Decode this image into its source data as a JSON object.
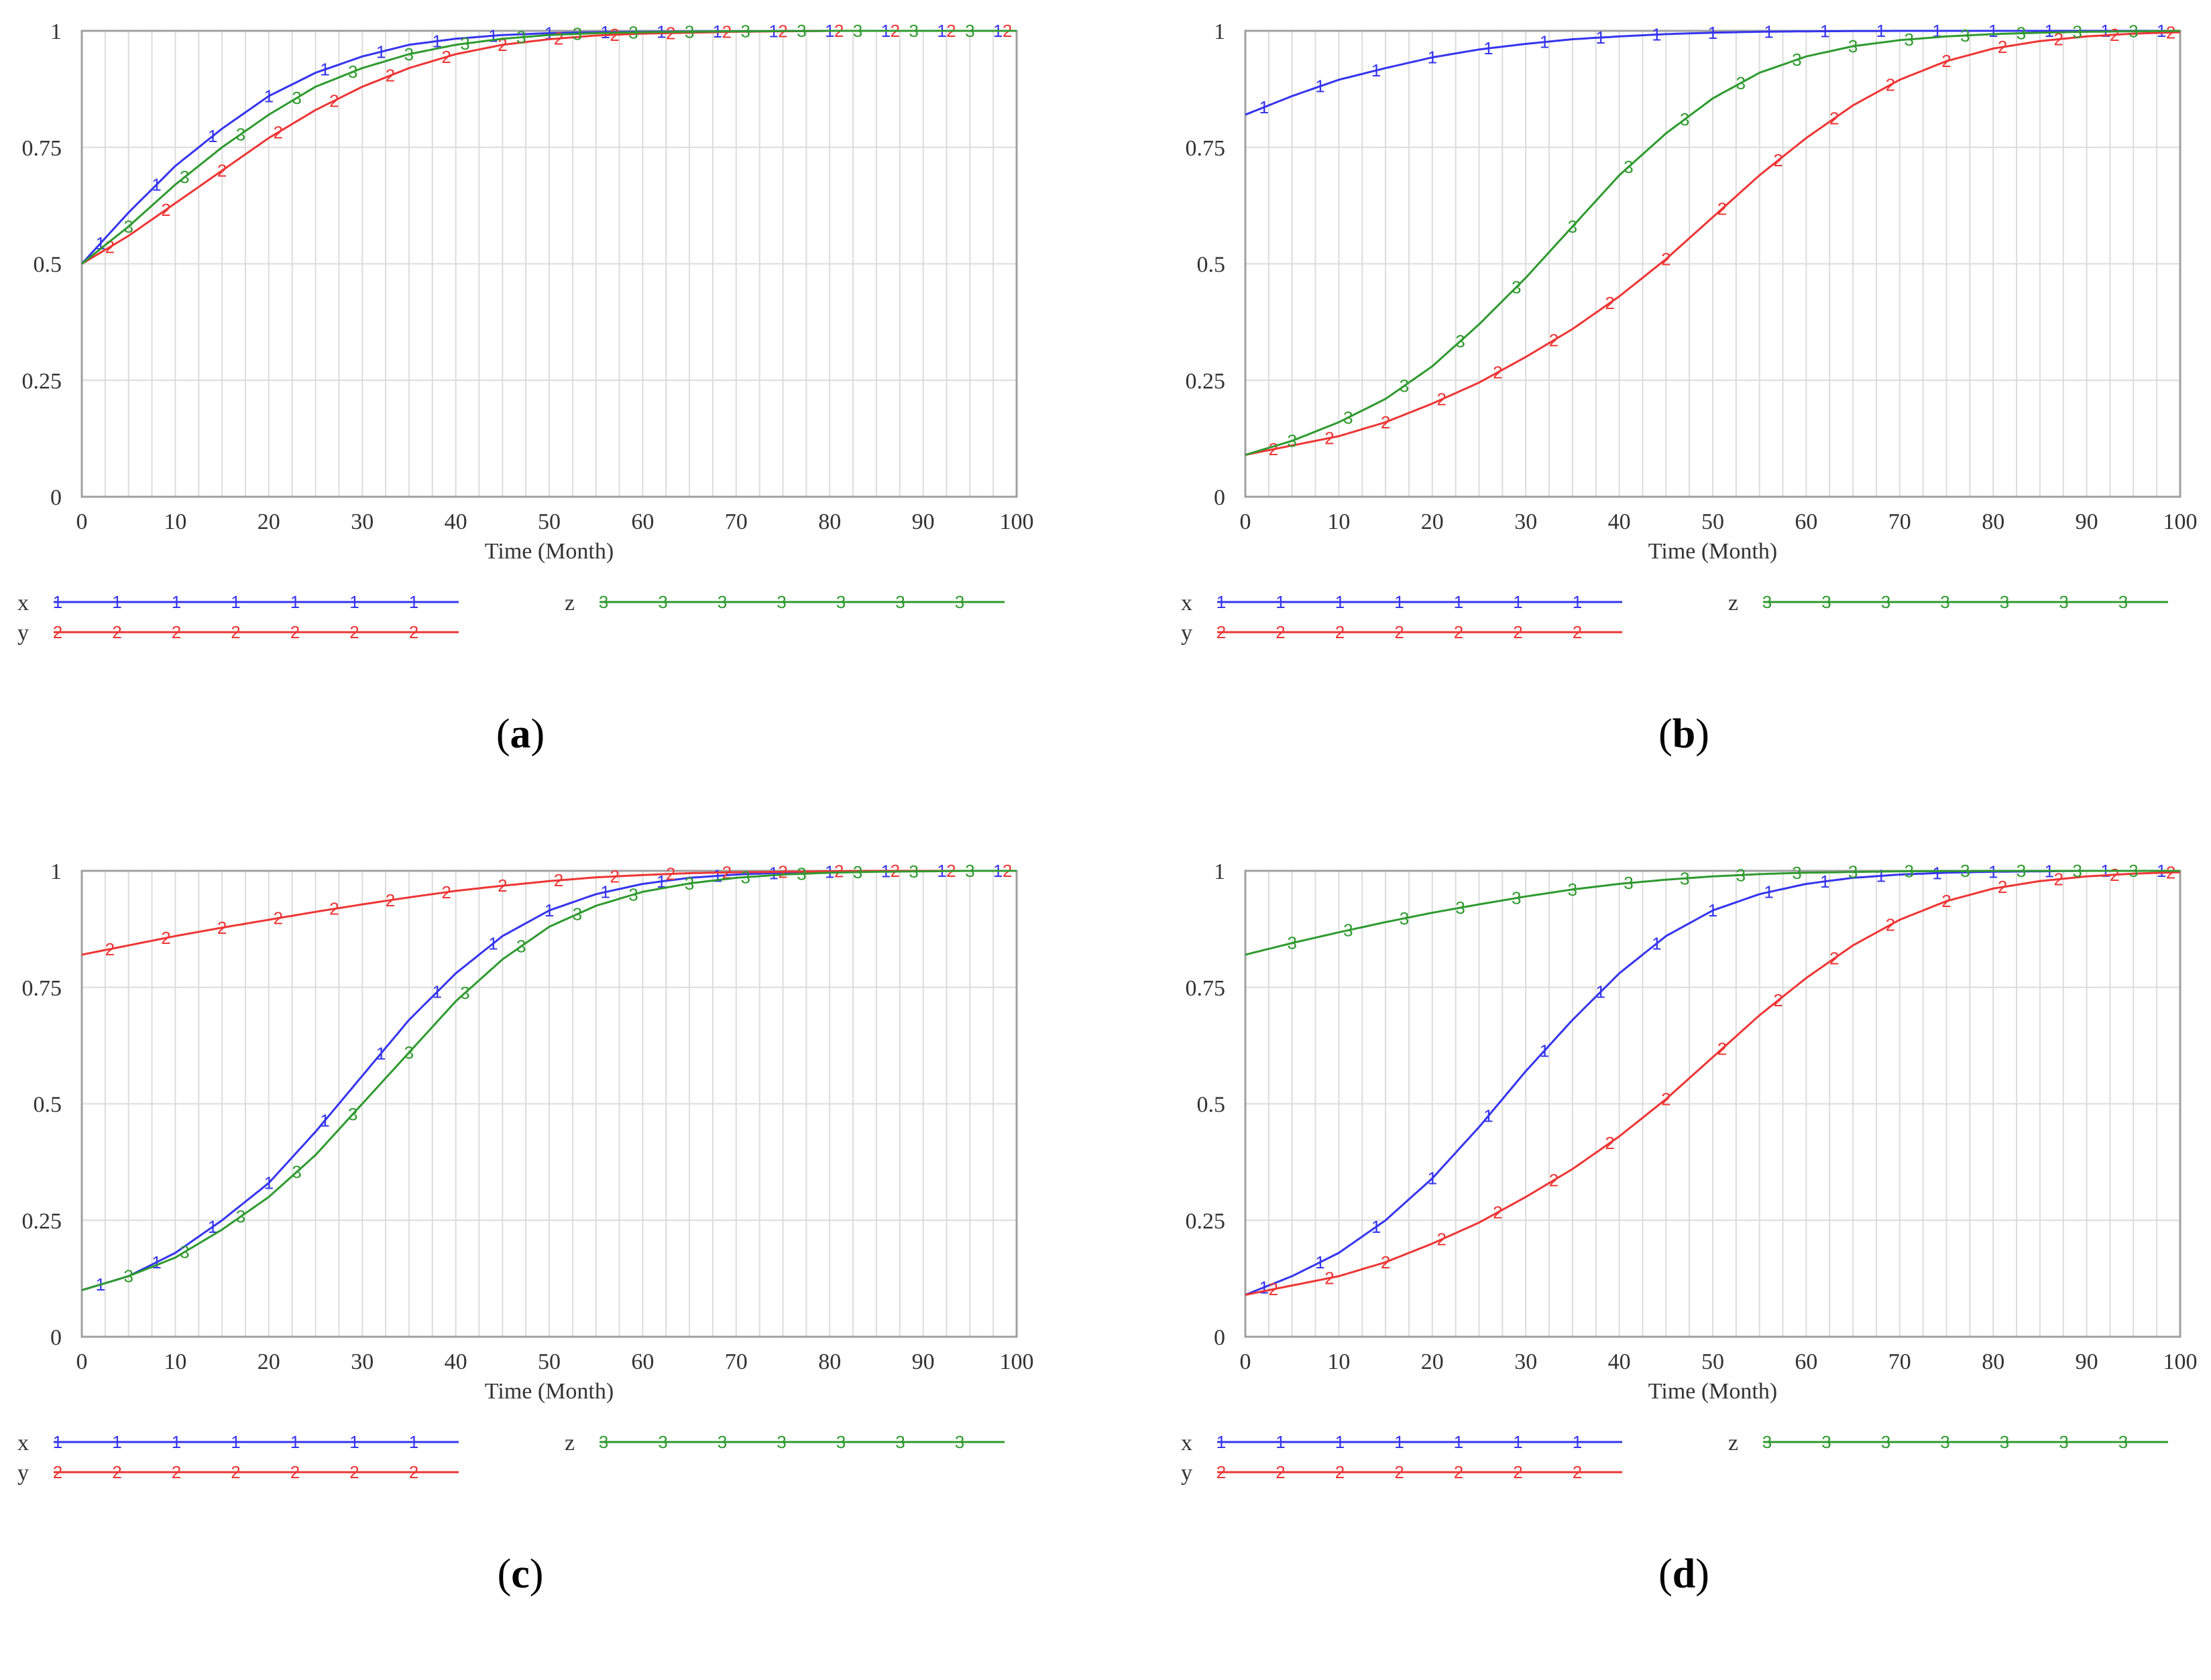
{
  "colors": {
    "x": "#3535ee",
    "y": "#ee3535",
    "z": "#2e9a2e",
    "grid": "#dcdcdc",
    "frame": "#a0a0a0"
  },
  "chart_data": [
    {
      "panel": "a",
      "type": "line",
      "xlabel": "Time (Month)",
      "ylabel": "",
      "xlim": [
        0,
        100
      ],
      "ylim": [
        0,
        1
      ],
      "xticks": [
        "0",
        "10",
        "20",
        "30",
        "40",
        "50",
        "60",
        "70",
        "80",
        "90",
        "100"
      ],
      "yticks": [
        "0",
        "0.25",
        "0.5",
        "0.75",
        "1"
      ],
      "series": [
        {
          "name": "x",
          "marker": "1",
          "x": [
            0,
            5,
            10,
            15,
            20,
            25,
            30,
            35,
            40,
            45,
            50,
            55,
            60,
            70,
            80,
            90,
            100
          ],
          "values": [
            0.5,
            0.61,
            0.71,
            0.79,
            0.86,
            0.91,
            0.945,
            0.97,
            0.983,
            0.991,
            0.995,
            0.997,
            0.998,
            0.999,
            1,
            1,
            1
          ]
        },
        {
          "name": "y",
          "marker": "2",
          "x": [
            0,
            5,
            10,
            15,
            20,
            25,
            30,
            35,
            40,
            45,
            50,
            55,
            60,
            70,
            80,
            90,
            100
          ],
          "values": [
            0.5,
            0.56,
            0.63,
            0.7,
            0.77,
            0.83,
            0.88,
            0.92,
            0.95,
            0.97,
            0.982,
            0.99,
            0.994,
            0.998,
            1,
            1,
            1
          ]
        },
        {
          "name": "z",
          "marker": "3",
          "x": [
            0,
            5,
            10,
            15,
            20,
            25,
            30,
            35,
            40,
            45,
            50,
            55,
            60,
            70,
            80,
            90,
            100
          ],
          "values": [
            0.5,
            0.58,
            0.67,
            0.75,
            0.82,
            0.88,
            0.92,
            0.95,
            0.97,
            0.983,
            0.991,
            0.995,
            0.997,
            0.999,
            1,
            1,
            1
          ]
        }
      ]
    },
    {
      "panel": "b",
      "type": "line",
      "xlabel": "Time (Month)",
      "ylabel": "",
      "xlim": [
        0,
        100
      ],
      "ylim": [
        0,
        1
      ],
      "xticks": [
        "0",
        "10",
        "20",
        "30",
        "40",
        "50",
        "60",
        "70",
        "80",
        "90",
        "100"
      ],
      "yticks": [
        "0",
        "0.25",
        "0.5",
        "0.75",
        "1"
      ],
      "series": [
        {
          "name": "x",
          "marker": "1",
          "x": [
            0,
            5,
            10,
            15,
            20,
            25,
            30,
            35,
            40,
            45,
            50,
            55,
            60,
            70,
            80,
            90,
            100
          ],
          "values": [
            0.82,
            0.86,
            0.895,
            0.92,
            0.943,
            0.96,
            0.972,
            0.982,
            0.988,
            0.993,
            0.996,
            0.998,
            0.999,
            1,
            1,
            1,
            1
          ]
        },
        {
          "name": "y",
          "marker": "2",
          "x": [
            0,
            5,
            10,
            15,
            20,
            25,
            30,
            35,
            40,
            45,
            50,
            55,
            60,
            65,
            70,
            75,
            80,
            85,
            90,
            95,
            100
          ],
          "values": [
            0.09,
            0.11,
            0.13,
            0.16,
            0.2,
            0.245,
            0.3,
            0.36,
            0.43,
            0.51,
            0.6,
            0.69,
            0.77,
            0.84,
            0.895,
            0.935,
            0.962,
            0.978,
            0.988,
            0.994,
            0.997
          ]
        },
        {
          "name": "z",
          "marker": "3",
          "x": [
            0,
            5,
            10,
            15,
            20,
            25,
            30,
            35,
            40,
            45,
            50,
            55,
            60,
            65,
            70,
            75,
            80,
            85,
            90,
            95,
            100
          ],
          "values": [
            0.09,
            0.12,
            0.16,
            0.21,
            0.28,
            0.37,
            0.47,
            0.58,
            0.69,
            0.78,
            0.855,
            0.91,
            0.945,
            0.967,
            0.98,
            0.988,
            0.993,
            0.996,
            0.998,
            0.999,
            1
          ]
        }
      ]
    },
    {
      "panel": "c",
      "type": "line",
      "xlabel": "Time (Month)",
      "ylabel": "",
      "xlim": [
        0,
        100
      ],
      "ylim": [
        0,
        1
      ],
      "xticks": [
        "0",
        "10",
        "20",
        "30",
        "40",
        "50",
        "60",
        "70",
        "80",
        "90",
        "100"
      ],
      "yticks": [
        "0",
        "0.25",
        "0.5",
        "0.75",
        "1"
      ],
      "series": [
        {
          "name": "x",
          "marker": "1",
          "x": [
            0,
            5,
            10,
            15,
            20,
            25,
            30,
            35,
            40,
            45,
            50,
            55,
            60,
            65,
            70,
            75,
            80,
            85,
            90,
            95,
            100
          ],
          "values": [
            0.1,
            0.13,
            0.18,
            0.25,
            0.33,
            0.44,
            0.56,
            0.68,
            0.78,
            0.86,
            0.915,
            0.95,
            0.972,
            0.985,
            0.992,
            0.996,
            0.998,
            0.999,
            1,
            1,
            1
          ]
        },
        {
          "name": "y",
          "marker": "2",
          "x": [
            0,
            5,
            10,
            15,
            20,
            25,
            30,
            35,
            40,
            45,
            50,
            55,
            60,
            65,
            70,
            75,
            80,
            85,
            90,
            95,
            100
          ],
          "values": [
            0.82,
            0.84,
            0.86,
            0.878,
            0.895,
            0.912,
            0.928,
            0.943,
            0.957,
            0.968,
            0.978,
            0.986,
            0.991,
            0.995,
            0.997,
            0.998,
            0.999,
            1,
            1,
            1,
            1
          ]
        },
        {
          "name": "z",
          "marker": "3",
          "x": [
            0,
            5,
            10,
            15,
            20,
            25,
            30,
            35,
            40,
            45,
            50,
            55,
            60,
            65,
            70,
            75,
            80,
            85,
            90,
            95,
            100
          ],
          "values": [
            0.1,
            0.13,
            0.17,
            0.23,
            0.3,
            0.39,
            0.5,
            0.61,
            0.72,
            0.81,
            0.88,
            0.925,
            0.955,
            0.973,
            0.985,
            0.992,
            0.996,
            0.998,
            0.999,
            1,
            1
          ]
        }
      ]
    },
    {
      "panel": "d",
      "type": "line",
      "xlabel": "Time (Month)",
      "ylabel": "",
      "xlim": [
        0,
        100
      ],
      "ylim": [
        0,
        1
      ],
      "xticks": [
        "0",
        "10",
        "20",
        "30",
        "40",
        "50",
        "60",
        "70",
        "80",
        "90",
        "100"
      ],
      "yticks": [
        "0",
        "0.25",
        "0.5",
        "0.75",
        "1"
      ],
      "series": [
        {
          "name": "x",
          "marker": "1",
          "x": [
            0,
            5,
            10,
            15,
            20,
            25,
            30,
            35,
            40,
            45,
            50,
            55,
            60,
            65,
            70,
            75,
            80,
            85,
            90,
            95,
            100
          ],
          "values": [
            0.09,
            0.13,
            0.18,
            0.25,
            0.34,
            0.45,
            0.57,
            0.68,
            0.78,
            0.86,
            0.915,
            0.95,
            0.972,
            0.985,
            0.992,
            0.996,
            0.998,
            0.999,
            1,
            1,
            1
          ]
        },
        {
          "name": "y",
          "marker": "2",
          "x": [
            0,
            5,
            10,
            15,
            20,
            25,
            30,
            35,
            40,
            45,
            50,
            55,
            60,
            65,
            70,
            75,
            80,
            85,
            90,
            95,
            100
          ],
          "values": [
            0.09,
            0.11,
            0.13,
            0.16,
            0.2,
            0.245,
            0.3,
            0.36,
            0.43,
            0.51,
            0.6,
            0.69,
            0.77,
            0.84,
            0.895,
            0.935,
            0.962,
            0.978,
            0.988,
            0.994,
            0.997
          ]
        },
        {
          "name": "z",
          "marker": "3",
          "x": [
            0,
            5,
            10,
            15,
            20,
            25,
            30,
            35,
            40,
            45,
            50,
            55,
            60,
            70,
            80,
            90,
            100
          ],
          "values": [
            0.82,
            0.845,
            0.868,
            0.89,
            0.91,
            0.928,
            0.945,
            0.96,
            0.972,
            0.981,
            0.988,
            0.993,
            0.996,
            0.999,
            1,
            1,
            1
          ]
        }
      ]
    }
  ],
  "panel_labels": [
    {
      "open": "(",
      "letter": "a",
      "close": ")"
    },
    {
      "open": "(",
      "letter": "b",
      "close": ")"
    },
    {
      "open": "(",
      "letter": "c",
      "close": ")"
    },
    {
      "open": "(",
      "letter": "d",
      "close": ")"
    }
  ]
}
